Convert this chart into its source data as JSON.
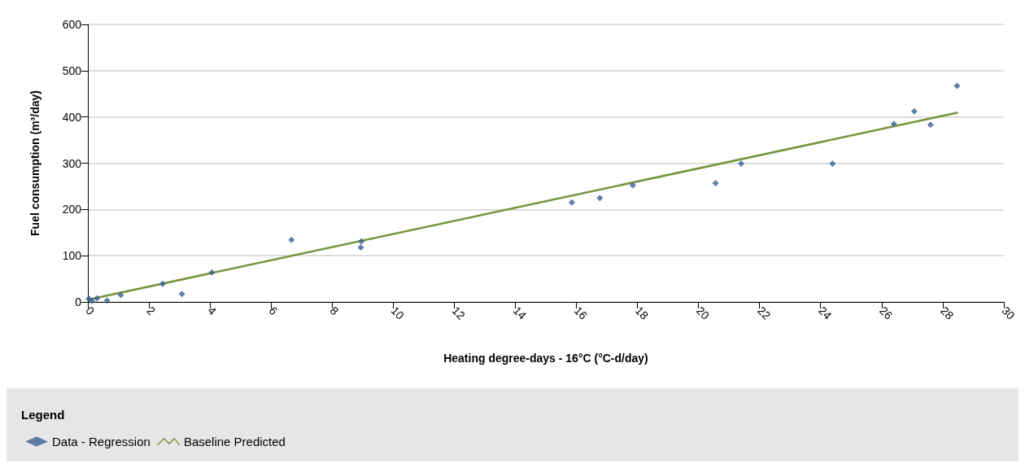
{
  "chart_data": {
    "type": "scatter",
    "xlabel": "Heating degree-days - 16°C (°C-d/day)",
    "ylabel": "Fuel consumption (m³/day)",
    "legend_title": "Legend",
    "legend": "bottom left",
    "grid": "y",
    "marker": "diamond",
    "xlim": [
      0,
      30
    ],
    "xticks": [
      0,
      2,
      4,
      6,
      8,
      10,
      12,
      14,
      16,
      18,
      20,
      22,
      24,
      26,
      28,
      30
    ],
    "ylim": [
      0,
      600
    ],
    "yticks": [
      0,
      100,
      200,
      300,
      400,
      500,
      600
    ],
    "series": [
      {
        "name": "Data - Regression",
        "color": "#376092",
        "x": [
          0.03,
          0.13,
          0.3,
          0.63,
          1.08,
          2.45,
          3.08,
          4.06,
          6.67,
          8.94,
          8.96,
          15.85,
          16.77,
          17.85,
          20.56,
          21.4,
          24.39,
          26.4,
          27.07,
          27.6,
          28.47
        ],
        "values": [
          7,
          2,
          8,
          3,
          15,
          39,
          17,
          64,
          134,
          118,
          131,
          215,
          225,
          252,
          257,
          299,
          299,
          385,
          412,
          383,
          467
        ]
      },
      {
        "name": "Baseline Predicted",
        "type": "line",
        "marker": "none",
        "color": "#77933c",
        "x": [
          0,
          28.47
        ],
        "values": [
          5,
          409
        ]
      }
    ]
  }
}
